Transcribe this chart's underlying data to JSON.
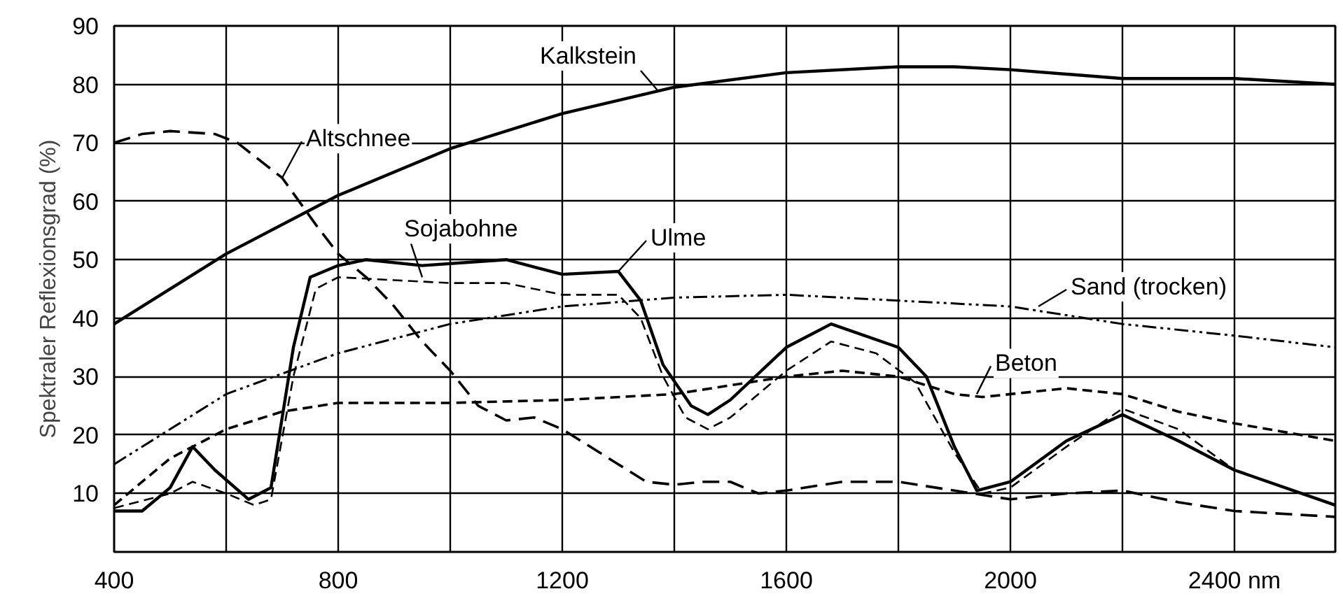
{
  "chart_data": {
    "type": "line",
    "ylabel": "Spektraler Reflexionsgrad (%)",
    "xlim": [
      400,
      2580
    ],
    "ylim": [
      0,
      90
    ],
    "xticks": [
      400,
      {
        "value": 600,
        "label": null
      },
      800,
      {
        "value": 1000,
        "label": null
      },
      1200,
      {
        "value": 1400,
        "label": null
      },
      1600,
      {
        "value": 1800,
        "label": null
      },
      2000,
      {
        "value": 2200,
        "label": null
      },
      {
        "value": 2400,
        "label": "2400 nm"
      }
    ],
    "yticks": [
      10,
      20,
      30,
      40,
      50,
      60,
      70,
      80,
      90
    ],
    "grid": true,
    "marker": "none",
    "series": [
      {
        "color": "#000000",
        "line_style": "solid",
        "x": [
          400,
          600,
          800,
          1000,
          1200,
          1400,
          1600,
          1800,
          1900,
          2000,
          2200,
          2400,
          2580
        ],
        "values": [
          39,
          51,
          61,
          69,
          75,
          79.5,
          82,
          83,
          83,
          82.5,
          81,
          81,
          80
        ]
      },
      {
        "color": "#000000",
        "line_style": "longdash",
        "x": [
          400,
          450,
          500,
          580,
          620,
          700,
          760,
          800,
          850,
          900,
          950,
          1000,
          1050,
          1100,
          1150,
          1200,
          1300,
          1350,
          1400,
          1450,
          1500,
          1550,
          1600,
          1700,
          1800,
          1900,
          2000,
          2100,
          2200,
          2300,
          2400,
          2580
        ],
        "values": [
          70,
          71.5,
          72,
          71.5,
          70,
          64,
          56,
          51,
          47,
          42,
          36,
          31,
          25,
          22.5,
          23,
          21,
          15,
          12,
          11.5,
          12,
          12,
          10,
          10.5,
          12,
          12,
          10.5,
          9,
          10,
          10.5,
          8.5,
          7,
          6
        ]
      },
      {
        "color": "#000000",
        "line_style": "dashed",
        "x": [
          400,
          500,
          540,
          600,
          650,
          680,
          720,
          760,
          800,
          900,
          1000,
          1100,
          1200,
          1300,
          1340,
          1380,
          1420,
          1460,
          1500,
          1600,
          1680,
          1760,
          1830,
          1900,
          1950,
          2000,
          2100,
          2200,
          2300,
          2400,
          2580
        ],
        "values": [
          7.5,
          10,
          12,
          10,
          8,
          9,
          30,
          45,
          47,
          46.5,
          46,
          46,
          44,
          44,
          40,
          30,
          23,
          21,
          23,
          31,
          36,
          34,
          29,
          17,
          10,
          11,
          18,
          24.5,
          21,
          14,
          8
        ]
      },
      {
        "color": "#000000",
        "line_style": "solid",
        "x": [
          400,
          450,
          500,
          540,
          580,
          640,
          680,
          720,
          750,
          800,
          850,
          950,
          1100,
          1200,
          1300,
          1340,
          1380,
          1430,
          1460,
          1500,
          1600,
          1680,
          1800,
          1850,
          1900,
          1940,
          2000,
          2100,
          2200,
          2300,
          2400,
          2580
        ],
        "values": [
          7,
          7,
          11,
          18,
          14,
          9,
          11,
          35,
          47,
          49,
          50,
          49,
          50,
          47.5,
          48,
          43,
          32,
          25,
          23.5,
          26,
          35,
          39,
          35,
          30,
          18,
          10.5,
          12,
          19,
          23.5,
          19,
          14,
          8
        ]
      },
      {
        "color": "#000000",
        "line_style": "dashdotdot",
        "x": [
          400,
          600,
          800,
          1000,
          1200,
          1400,
          1600,
          1800,
          2000,
          2200,
          2400,
          2580
        ],
        "values": [
          15,
          27,
          34,
          39,
          42,
          43.5,
          44,
          43,
          42,
          39,
          37,
          35
        ]
      },
      {
        "color": "#000000",
        "line_style": "dashed",
        "x": [
          400,
          500,
          600,
          700,
          800,
          1000,
          1200,
          1400,
          1600,
          1700,
          1800,
          1900,
          1950,
          2000,
          2100,
          2200,
          2300,
          2400,
          2580
        ],
        "values": [
          8,
          16,
          21,
          24,
          25.5,
          25.5,
          26,
          27,
          30,
          31,
          30,
          27,
          26.5,
          27,
          28,
          27,
          24,
          22,
          19
        ]
      }
    ],
    "annotations": [
      {
        "text": "Kalkstein",
        "x": 1370,
        "y": 79
      },
      {
        "text": "Altschnee",
        "x": 700,
        "y": 64
      },
      {
        "text": "Sojabohne",
        "x": 950,
        "y": 47
      },
      {
        "text": "Ulme",
        "x": 1300,
        "y": 48
      },
      {
        "text": "Sand (trocken)",
        "x": 2050,
        "y": 42
      },
      {
        "text": "Beton",
        "x": 1940,
        "y": 27
      }
    ]
  }
}
